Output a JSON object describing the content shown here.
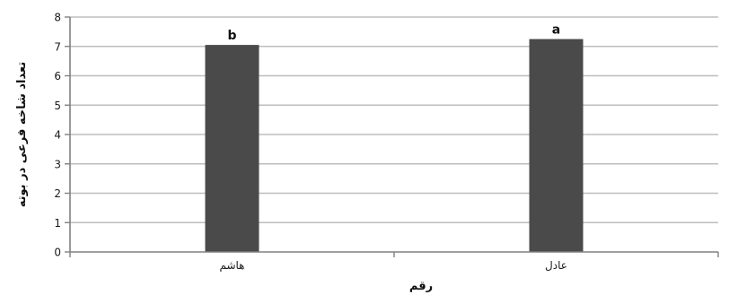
{
  "chart_data": {
    "type": "bar",
    "categories": [
      "هاشم",
      "عادل"
    ],
    "values": [
      7.05,
      7.25
    ],
    "data_labels": [
      "b",
      "a"
    ],
    "title": "",
    "xlabel": "رقم",
    "ylabel": "تعداد شاخه فرعی در بوته",
    "ylim": [
      0,
      8
    ],
    "yticks": [
      0,
      1,
      2,
      3,
      4,
      5,
      6,
      7,
      8
    ],
    "grid": true,
    "legend": "none",
    "bar_color": "#4a4a4a",
    "grid_color": "#bdbdbd",
    "axis_color": "#808080"
  }
}
